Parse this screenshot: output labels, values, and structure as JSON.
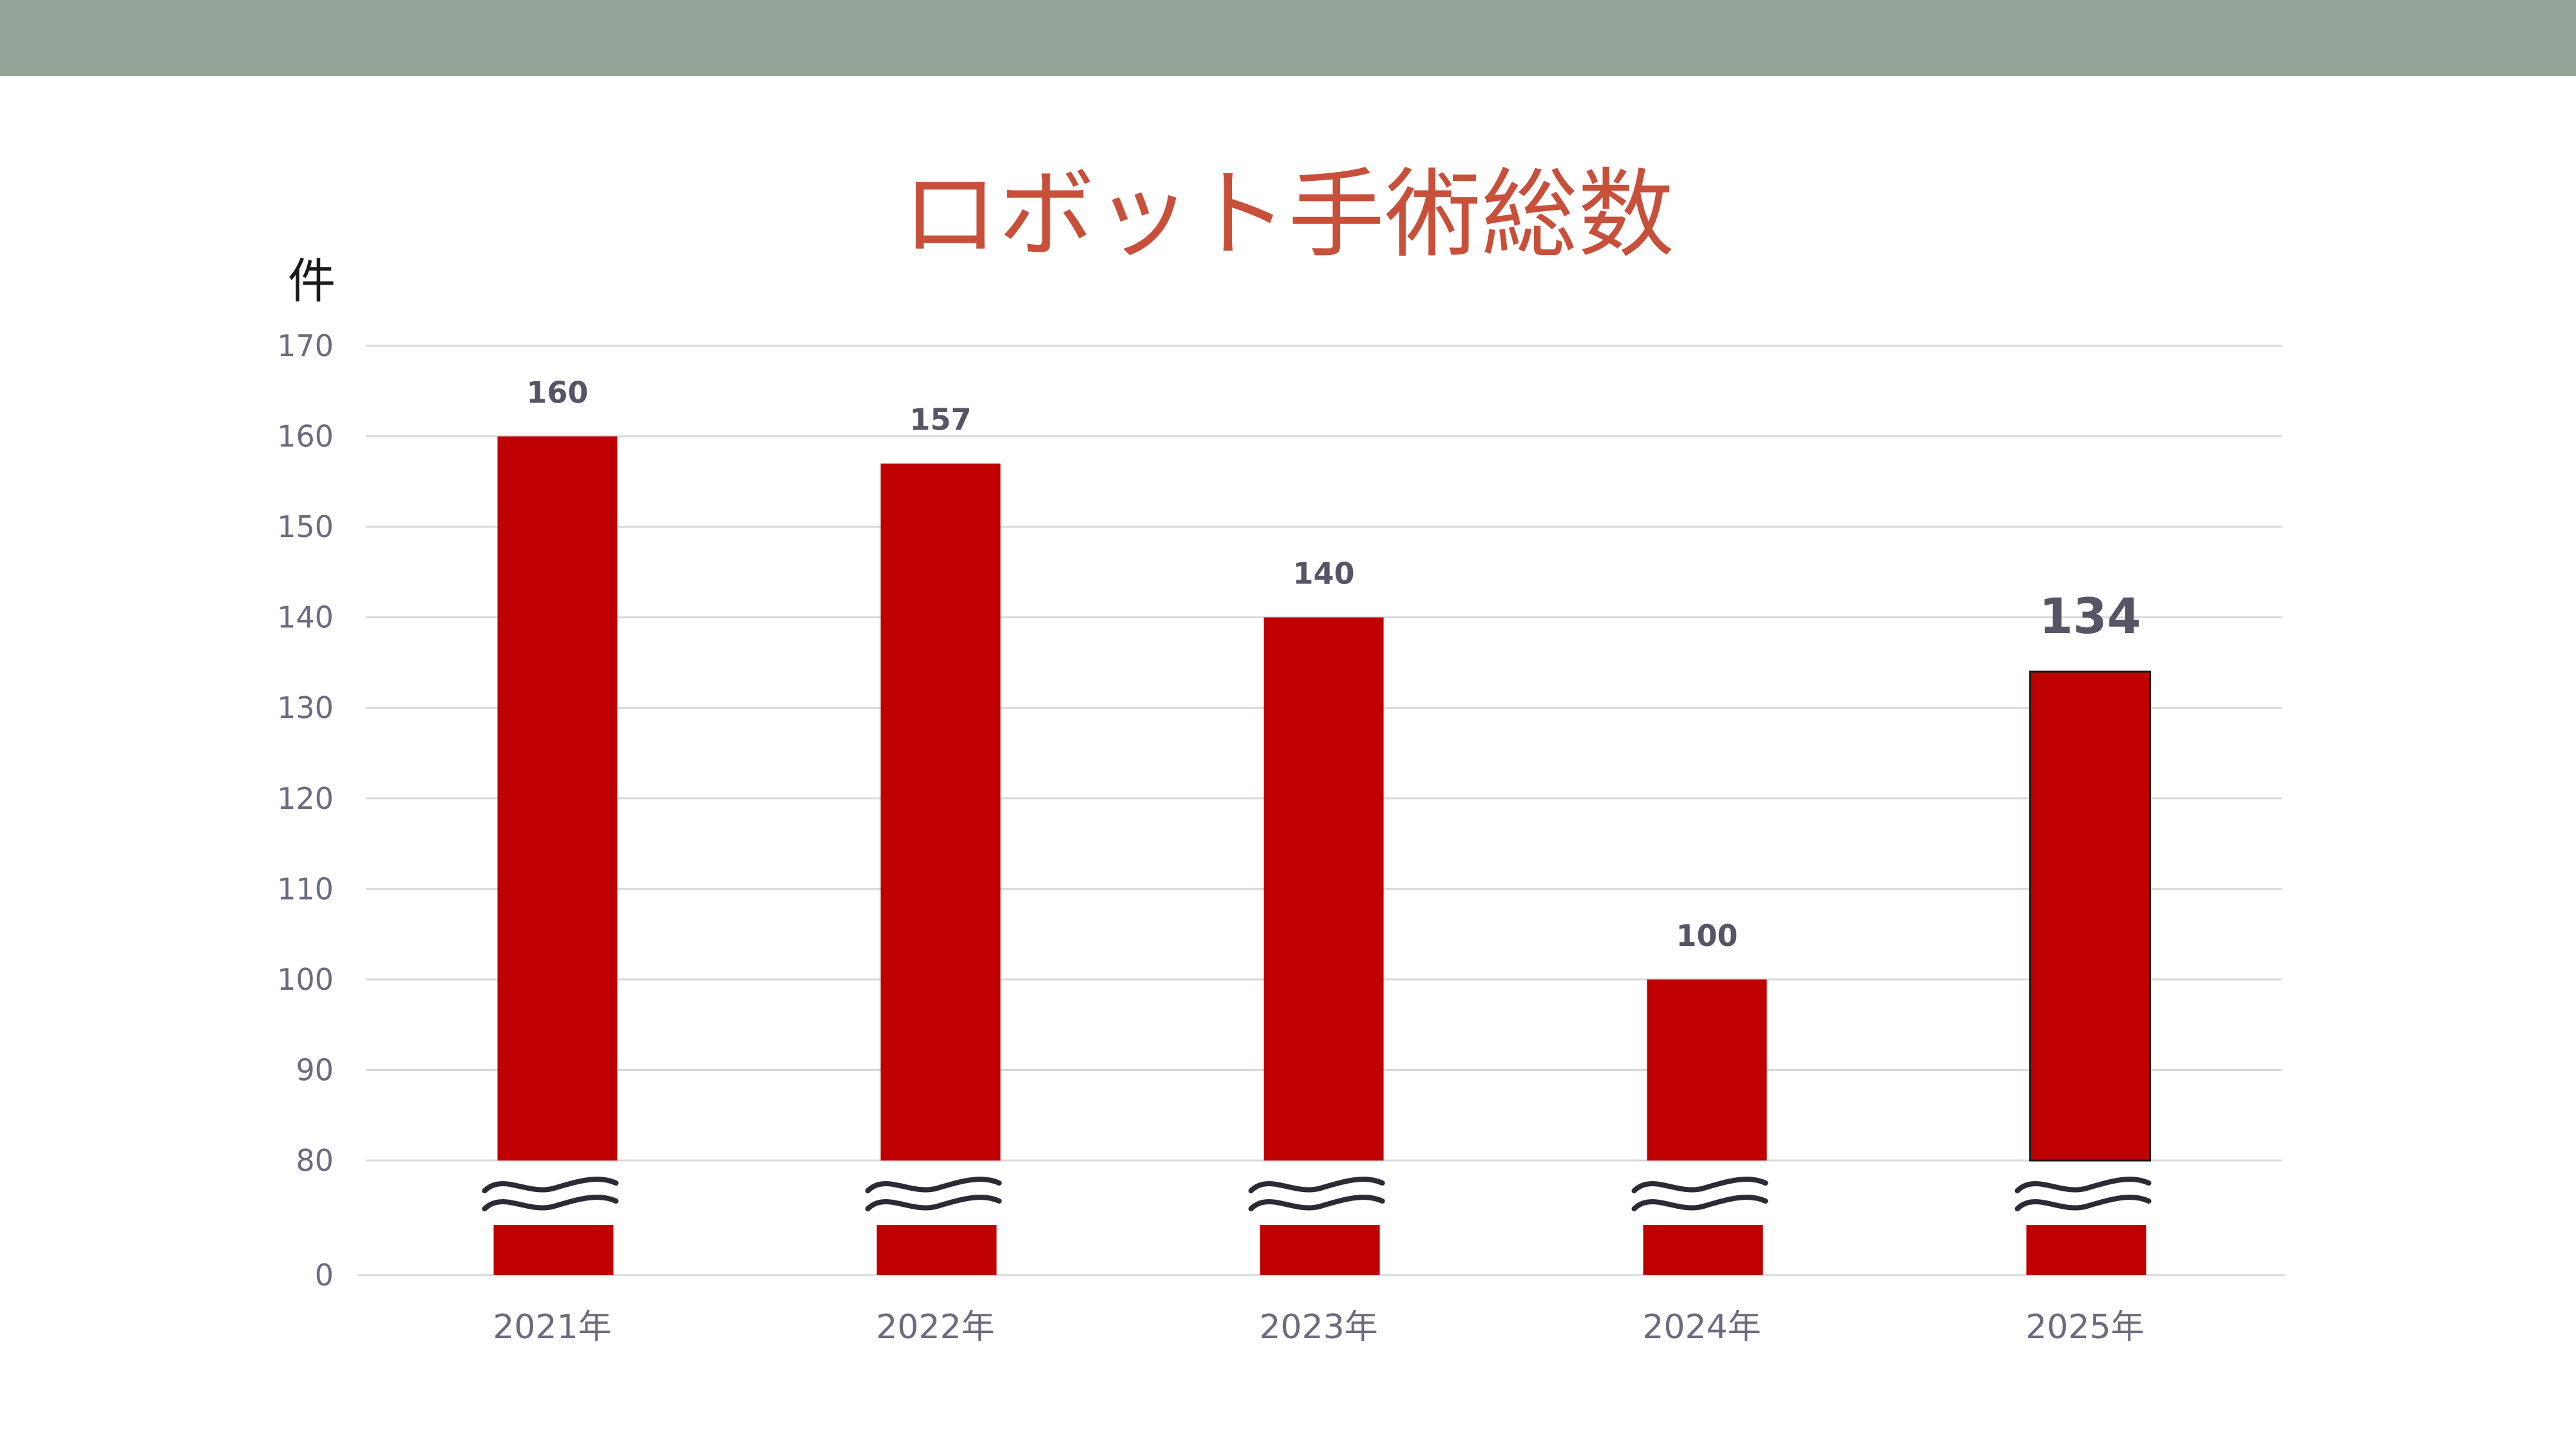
{
  "colors": {
    "banner": "#93a398",
    "title": "#c8503a",
    "bar": "#c00000",
    "grid": "#d9d9d9",
    "tick": "#6b6b80",
    "value_label": "#555566",
    "break_mark": "#2b2b36"
  },
  "chart_data": {
    "type": "bar",
    "title": "ロボット手術総数",
    "ylabel": "件",
    "xlabel": "",
    "categories": [
      "2021年",
      "2022年",
      "2023年",
      "2024年",
      "2025年"
    ],
    "values": [
      160,
      157,
      140,
      100,
      134
    ],
    "emphasized_index": 4,
    "ylim": [
      0,
      170
    ],
    "axis_break": {
      "from": 0,
      "to": 80
    },
    "yticks": [
      0,
      80,
      90,
      100,
      110,
      120,
      130,
      140,
      150,
      160,
      170
    ],
    "grid": true,
    "legend": "none"
  }
}
